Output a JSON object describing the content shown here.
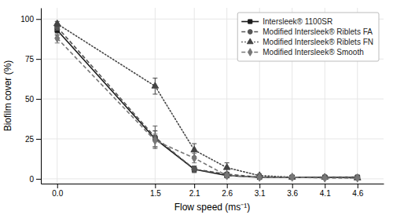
{
  "chart_data": {
    "type": "line",
    "xlabel": "Flow speed (ms⁻¹)",
    "ylabel": "Biofilm cover (%)",
    "x": [
      0.0,
      1.5,
      2.1,
      2.6,
      3.1,
      3.6,
      4.1,
      4.6
    ],
    "xlim": [
      -0.25,
      5.0
    ],
    "xticks": [
      {
        "value": 0.0,
        "label": "0.0"
      },
      1.5,
      2.1,
      2.6,
      3.1,
      3.6,
      4.1,
      4.6
    ],
    "ylim": [
      -3,
      107
    ],
    "yticks": [
      0,
      25,
      50,
      75,
      100
    ],
    "grid": true,
    "legend": "upper right",
    "series": [
      {
        "name": "Intersleek® 1100SR",
        "color": "#1a1a1a",
        "marker": "square",
        "line_style": "solid",
        "values": [
          93,
          25,
          6,
          2,
          1,
          1,
          1,
          1
        ],
        "errors": [
          3,
          5,
          2,
          0.8,
          0.4,
          0.4,
          0.3,
          0.3
        ]
      },
      {
        "name": "Modified Intersleek® Riblets FA",
        "color": "#555555",
        "marker": "circle",
        "line_style": "dashed",
        "values": [
          95,
          26,
          6,
          3,
          1,
          1,
          1,
          1
        ],
        "errors": [
          2,
          7,
          2,
          1,
          0.5,
          0.4,
          0.4,
          0.3
        ]
      },
      {
        "name": "Modified Intersleek® Riblets FN",
        "color": "#444444",
        "marker": "triangle",
        "line_style": "dotted",
        "values": [
          97,
          58,
          18,
          7,
          2,
          1,
          1,
          0.5
        ],
        "errors": [
          1.5,
          5,
          4,
          3,
          1,
          0.4,
          0.4,
          0.3
        ]
      },
      {
        "name": "Modified Intersleek® Smooth",
        "color": "#777777",
        "marker": "diamond",
        "line_style": "dashed",
        "values": [
          88,
          24,
          13,
          2,
          1,
          1,
          0.5,
          0.5
        ],
        "errors": [
          3,
          4,
          3,
          1,
          0.5,
          0.4,
          0.3,
          0.3
        ]
      }
    ]
  }
}
